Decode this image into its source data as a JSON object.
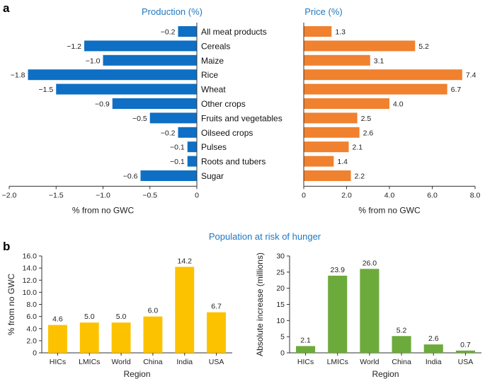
{
  "panels": {
    "a": "a",
    "b": "b"
  },
  "colors": {
    "production": "#0e6fc4",
    "price": "#f0812f",
    "hunger_percent": "#fcc200",
    "hunger_absolute": "#6daa3c",
    "title": "#1f78c1"
  },
  "chart_data": [
    {
      "id": "production",
      "type": "bar",
      "orientation": "horizontal",
      "title": "Production (%)",
      "xlabel": "% from no GWC",
      "ylabel": "",
      "categories": [
        "All meat products",
        "Cereals",
        "Maize",
        "Rice",
        "Wheat",
        "Other crops",
        "Fruits and vegetables",
        "Oilseed crops",
        "Pulses",
        "Roots and tubers",
        "Sugar"
      ],
      "values": [
        -0.2,
        -1.2,
        -1.0,
        -1.8,
        -1.5,
        -0.9,
        -0.5,
        -0.2,
        -0.1,
        -0.1,
        -0.6
      ],
      "labels": [
        "−0.2",
        "−1.2",
        "−1.0",
        "−1.8",
        "−1.5",
        "−0.9",
        "−0.5",
        "−0.2",
        "−0.1",
        "−0.1",
        "−0.6"
      ],
      "xlim": [
        -2.0,
        0
      ],
      "ticks": [
        -2.0,
        -1.5,
        -1.0,
        -0.5,
        0
      ],
      "tick_labels": [
        "−2.0",
        "−1.5",
        "−1.0",
        "−0.5",
        "0"
      ]
    },
    {
      "id": "price",
      "type": "bar",
      "orientation": "horizontal",
      "title": "Price (%)",
      "xlabel": "% from no GWC",
      "ylabel": "",
      "categories": [
        "All meat products",
        "Cereals",
        "Maize",
        "Rice",
        "Wheat",
        "Other crops",
        "Fruits and vegetables",
        "Oilseed crops",
        "Pulses",
        "Roots and tubers",
        "Sugar"
      ],
      "values": [
        1.3,
        5.2,
        3.1,
        7.4,
        6.7,
        4.0,
        2.5,
        2.6,
        2.1,
        1.4,
        2.2
      ],
      "labels": [
        "1.3",
        "5.2",
        "3.1",
        "7.4",
        "6.7",
        "4.0",
        "2.5",
        "2.6",
        "2.1",
        "1.4",
        "2.2"
      ],
      "xlim": [
        0,
        8.0
      ],
      "ticks": [
        0,
        2.0,
        4.0,
        6.0,
        8.0
      ],
      "tick_labels": [
        "0",
        "2.0",
        "4.0",
        "6.0",
        "8.0"
      ]
    },
    {
      "id": "hunger_percent",
      "type": "bar",
      "orientation": "vertical",
      "title": "Population at risk of hunger",
      "xlabel": "Region",
      "ylabel": "% from no GWC",
      "categories": [
        "HICs",
        "LMICs",
        "World",
        "China",
        "India",
        "USA"
      ],
      "values": [
        4.6,
        5.0,
        5.0,
        6.0,
        14.2,
        6.7
      ],
      "labels": [
        "4.6",
        "5.0",
        "5.0",
        "6.0",
        "14.2",
        "6.7"
      ],
      "ylim": [
        0,
        16.0
      ],
      "ticks": [
        0,
        2.0,
        4.0,
        6.0,
        8.0,
        10.0,
        12.0,
        14.0,
        16.0
      ],
      "tick_labels": [
        "0",
        "2.0",
        "4.0",
        "6.0",
        "8.0",
        "10.0",
        "12.0",
        "14.0",
        "16.0"
      ]
    },
    {
      "id": "hunger_absolute",
      "type": "bar",
      "orientation": "vertical",
      "title": "",
      "xlabel": "Region",
      "ylabel": "Absolute increase (millions)",
      "categories": [
        "HICs",
        "LMICs",
        "World",
        "China",
        "India",
        "USA"
      ],
      "values": [
        2.1,
        23.9,
        26.0,
        5.2,
        2.6,
        0.7
      ],
      "labels": [
        "2.1",
        "23.9",
        "26.0",
        "5.2",
        "2.6",
        "0.7"
      ],
      "ylim": [
        0,
        30
      ],
      "ticks": [
        0,
        5,
        10,
        15,
        20,
        25,
        30
      ],
      "tick_labels": [
        "0",
        "5",
        "10",
        "15",
        "20",
        "25",
        "30"
      ]
    }
  ]
}
